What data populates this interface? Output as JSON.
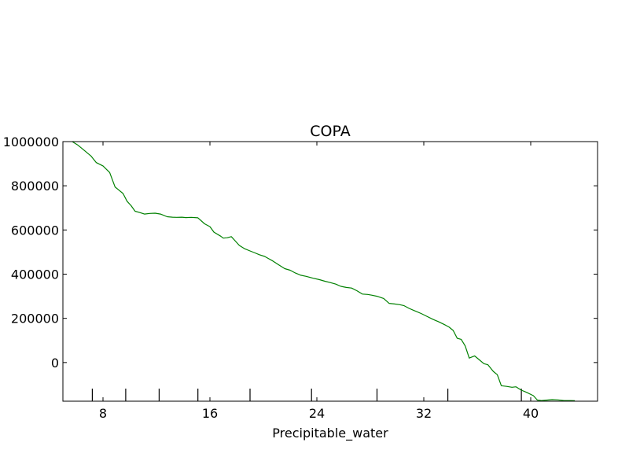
{
  "chart_data": {
    "type": "line",
    "title": "COPA",
    "xlabel": "Precipitable_water",
    "ylabel": "",
    "xlim": [
      5,
      45
    ],
    "ylim": [
      -175000,
      1000000
    ],
    "x_ticks": [
      8,
      16,
      24,
      32,
      40
    ],
    "x_tick_labels": [
      "8",
      "16",
      "24",
      "32",
      "40"
    ],
    "y_ticks": [
      0,
      200000,
      400000,
      600000,
      800000,
      1000000
    ],
    "y_tick_labels": [
      "0",
      "200000",
      "400000",
      "600000",
      "800000",
      "1000000"
    ],
    "grid": false,
    "colors": {
      "line": "#008000",
      "axis": "#000000"
    },
    "extra_bottom_ticks": [
      7.2,
      9.7,
      12.2,
      15.1,
      19.0,
      23.6,
      28.5,
      33.8,
      39.3
    ],
    "series": [
      {
        "x": [
          5.7,
          6.1,
          6.6,
          7.1,
          7.5,
          8.0,
          8.5,
          8.9,
          9.2,
          9.5,
          9.8,
          10.1,
          10.4,
          10.8,
          11.1,
          11.5,
          11.9,
          12.3,
          12.8,
          13.2,
          13.5,
          13.9,
          14.2,
          14.6,
          15.1,
          15.6,
          16.0,
          16.3,
          16.8,
          17.0,
          17.3,
          17.6,
          17.9,
          18.2,
          18.6,
          19.0,
          19.3,
          19.7,
          20.1,
          20.4,
          20.7,
          21.2,
          21.6,
          22.0,
          22.4,
          22.8,
          23.2,
          23.7,
          24.2,
          24.6,
          25.0,
          25.4,
          25.8,
          26.2,
          26.6,
          27.0,
          27.4,
          27.8,
          28.1,
          28.5,
          29.0,
          29.4,
          29.8,
          30.2,
          30.5,
          30.9,
          31.3,
          31.8,
          32.2,
          32.7,
          33.1,
          33.6,
          33.9,
          34.2,
          34.5,
          34.8,
          35.1,
          35.4,
          35.8,
          36.1,
          36.5,
          36.8,
          37.2,
          37.5,
          37.8,
          38.2,
          38.6,
          38.9,
          39.3,
          39.7,
          40.2,
          40.5,
          40.8,
          41.2,
          41.6,
          42.0,
          42.5,
          43.0,
          43.3
        ],
        "values": [
          1000000,
          985000,
          960000,
          935000,
          905000,
          890000,
          860000,
          795000,
          780000,
          765000,
          730000,
          710000,
          685000,
          678000,
          672000,
          675000,
          676000,
          672000,
          660000,
          658000,
          657000,
          658000,
          656000,
          657000,
          655000,
          628000,
          615000,
          590000,
          572000,
          563000,
          565000,
          570000,
          550000,
          530000,
          515000,
          505000,
          498000,
          488000,
          480000,
          470000,
          460000,
          440000,
          425000,
          418000,
          405000,
          395000,
          390000,
          382000,
          375000,
          368000,
          362000,
          355000,
          345000,
          340000,
          337000,
          325000,
          310000,
          308000,
          305000,
          300000,
          290000,
          268000,
          265000,
          262000,
          258000,
          245000,
          235000,
          222000,
          210000,
          195000,
          185000,
          170000,
          160000,
          145000,
          110000,
          105000,
          75000,
          20000,
          30000,
          15000,
          -5000,
          -10000,
          -40000,
          -55000,
          -105000,
          -108000,
          -112000,
          -110000,
          -125000,
          -135000,
          -150000,
          -170000,
          -172000,
          -170000,
          -168000,
          -169000,
          -172000,
          -172000,
          -173000
        ]
      }
    ]
  }
}
